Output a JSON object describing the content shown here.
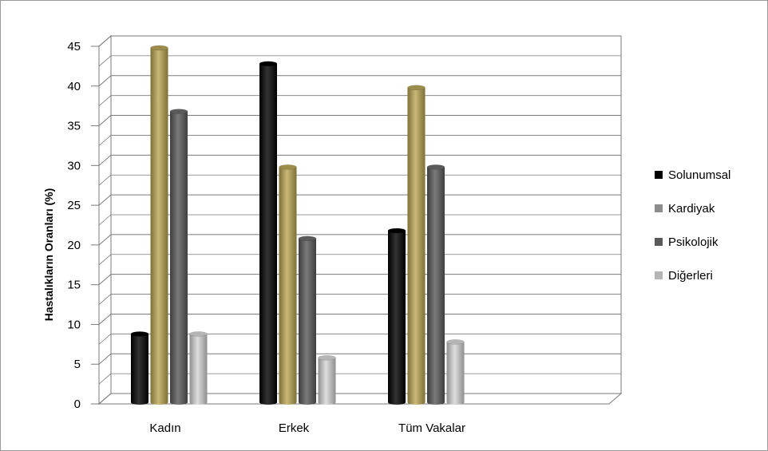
{
  "chart_data": {
    "type": "bar",
    "title": "",
    "xlabel": "",
    "ylabel": "Hastalıkların Oranları (%)",
    "ylim": [
      0,
      45
    ],
    "yticks": [
      0,
      5,
      10,
      15,
      20,
      25,
      30,
      35,
      40,
      45
    ],
    "grid": true,
    "legend_position": "right",
    "categories": [
      "Kadın",
      "Erkek",
      "Tüm Vakalar"
    ],
    "series": [
      {
        "name": "Solunumsal",
        "color": "#000000",
        "values": [
          9,
          43,
          22
        ]
      },
      {
        "name": "Kardiyak",
        "color": "#9c8d4c",
        "values": [
          45,
          30,
          40
        ]
      },
      {
        "name": "Psikolojik",
        "color": "#5a5a5a",
        "values": [
          37,
          21,
          30
        ]
      },
      {
        "name": "Diğerleri",
        "color": "#b5b5b5",
        "values": [
          9,
          6,
          8
        ]
      }
    ]
  }
}
